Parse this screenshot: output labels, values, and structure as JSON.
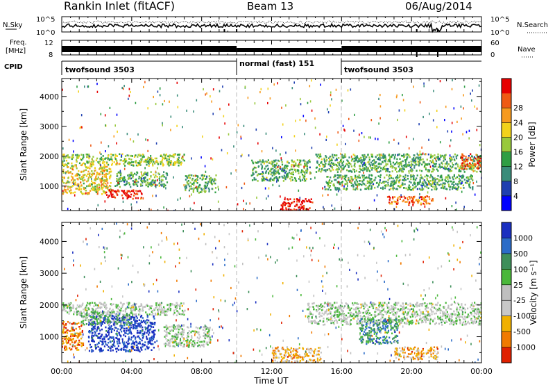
{
  "header": {
    "station": "Rankin Inlet (fitACF)",
    "beam": "Beam 13",
    "date": "06/Aug/2014"
  },
  "noise_panel": {
    "left_label": "N.Sky",
    "right_label": "N.Search",
    "left_ticks": [
      "10^5",
      "10^0"
    ],
    "right_ticks": [
      "10^5",
      "10^0"
    ]
  },
  "freq_panel": {
    "left_label_1": "Freq.",
    "left_label_2": "[MHz]",
    "left_ticks": [
      "12",
      "8"
    ],
    "right_label": "Nave",
    "right_ticks": [
      "60",
      "0"
    ]
  },
  "cpid_panel": {
    "label": "CPID",
    "segments": [
      {
        "name": "twofsound 3503",
        "start_h": 0,
        "end_h": 10
      },
      {
        "name": "normal (fast) 151",
        "start_h": 10,
        "end_h": 16
      },
      {
        "name": "twofsound 3503",
        "start_h": 16,
        "end_h": 24
      }
    ]
  },
  "time_axis": {
    "label": "Time UT",
    "ticks": [
      "00:00",
      "04:00",
      "08:00",
      "12:00",
      "16:00",
      "20:00",
      "00:00"
    ]
  },
  "chart_data": [
    {
      "type": "heatmap",
      "title": "Power",
      "x": "Time UT",
      "xlabel": "Time UT",
      "ylabel": "Slant Range [km]",
      "xlim": [
        0,
        24
      ],
      "ylim": [
        180,
        4600
      ],
      "yticks": [
        1000,
        2000,
        3000,
        4000
      ],
      "colorbar": {
        "label": "Power [dB]",
        "ticks": [
          "4",
          "8",
          "12",
          "16",
          "20",
          "24",
          "28"
        ],
        "colors": [
          "#0000ff",
          "#1e3fb0",
          "#3a8c7a",
          "#2f9e44",
          "#98c93c",
          "#f2d21b",
          "#f79a1e",
          "#ef5a14",
          "#e60000"
        ]
      },
      "echo_regions": [
        {
          "t": [
            0.0,
            7.0
          ],
          "r": [
            1700,
            2100
          ],
          "level": 4
        },
        {
          "t": [
            0.0,
            2.8
          ],
          "r": [
            750,
            1700
          ],
          "level": 5
        },
        {
          "t": [
            2.5,
            4.6
          ],
          "r": [
            600,
            900
          ],
          "level": 8
        },
        {
          "t": [
            3.0,
            6.0
          ],
          "r": [
            1000,
            1500
          ],
          "level": 3
        },
        {
          "t": [
            7.0,
            8.8
          ],
          "r": [
            800,
            1400
          ],
          "level": 3
        },
        {
          "t": [
            10.8,
            14.2
          ],
          "r": [
            1200,
            1900
          ],
          "level": 3
        },
        {
          "t": [
            12.5,
            14.3
          ],
          "r": [
            200,
            600
          ],
          "level": 8
        },
        {
          "t": [
            14.5,
            24.0
          ],
          "r": [
            1500,
            2100
          ],
          "level": 3
        },
        {
          "t": [
            15.0,
            23.5
          ],
          "r": [
            900,
            1400
          ],
          "level": 3
        },
        {
          "t": [
            18.6,
            21.2
          ],
          "r": [
            400,
            700
          ],
          "level": 7
        },
        {
          "t": [
            22.8,
            24.0
          ],
          "r": [
            1600,
            2100
          ],
          "level": 7
        }
      ]
    },
    {
      "type": "heatmap",
      "title": "Velocity",
      "x": "Time UT",
      "xlabel": "Time UT",
      "ylabel": "Slant Range [km]",
      "xlim": [
        0,
        24
      ],
      "ylim": [
        180,
        4600
      ],
      "yticks": [
        1000,
        2000,
        3000,
        4000
      ],
      "colorbar": {
        "label": "Velocity [m s⁻¹]",
        "ticks": [
          "1000",
          "500",
          "100",
          "25",
          "-25",
          "-100",
          "-500",
          "-1000"
        ],
        "colors": [
          "#1a2fc0",
          "#2b6cc8",
          "#3e8f5a",
          "#4ab83a",
          "#bfbfbf",
          "#c8c8c8",
          "#f0b000",
          "#f07a00",
          "#e02000"
        ]
      },
      "echo_regions": [
        {
          "t": [
            0.0,
            7.0
          ],
          "r": [
            1700,
            2100
          ],
          "level": 4
        },
        {
          "t": [
            0.0,
            1.2
          ],
          "r": [
            600,
            1500
          ],
          "level": 7
        },
        {
          "t": [
            1.5,
            5.3
          ],
          "r": [
            550,
            1700
          ],
          "level": 0
        },
        {
          "t": [
            1.0,
            4.0
          ],
          "r": [
            1400,
            1800
          ],
          "level": 3
        },
        {
          "t": [
            5.8,
            8.5
          ],
          "r": [
            700,
            1400
          ],
          "level": 4
        },
        {
          "t": [
            12.0,
            14.8
          ],
          "r": [
            200,
            700
          ],
          "level": 6
        },
        {
          "t": [
            14.0,
            24.0
          ],
          "r": [
            1400,
            2100
          ],
          "level": 4
        },
        {
          "t": [
            17.0,
            19.2
          ],
          "r": [
            800,
            1600
          ],
          "level": 2
        },
        {
          "t": [
            19.0,
            21.5
          ],
          "r": [
            300,
            700
          ],
          "level": 6
        }
      ]
    }
  ]
}
